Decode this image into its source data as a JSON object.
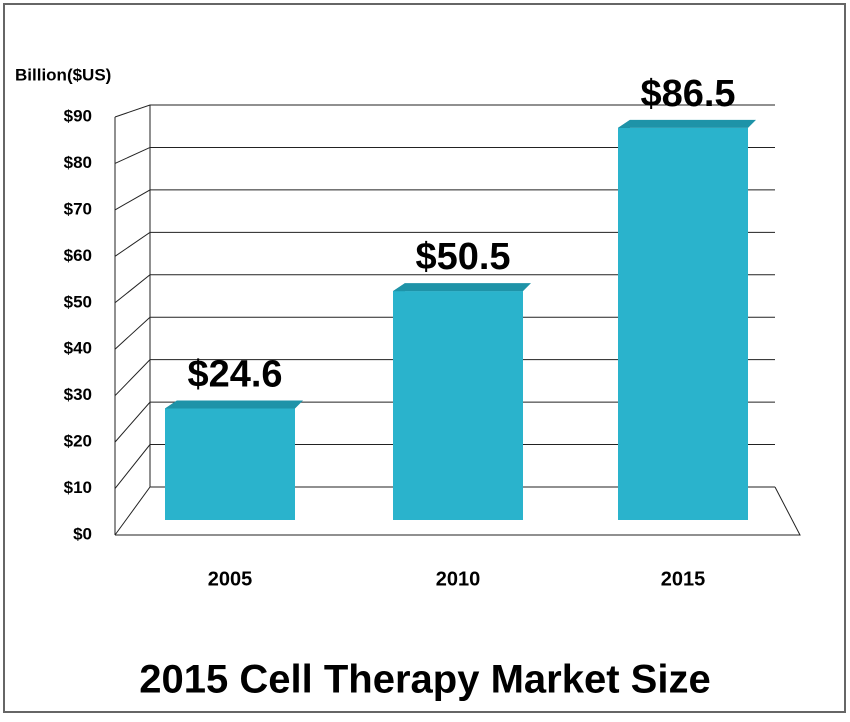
{
  "chart_data": {
    "type": "bar",
    "title": "2015 Cell Therapy Market Size",
    "y_label": "Billion($US)",
    "categories": [
      "2005",
      "2010",
      "2015"
    ],
    "values": [
      24.6,
      50.5,
      86.5
    ],
    "value_labels": [
      "$24.6",
      "$50.5",
      "$86.5"
    ],
    "color": "#2ab3cc",
    "ylim": [
      0,
      90
    ],
    "yticks": [
      {
        "value": 0,
        "label": "$0"
      },
      {
        "value": 10,
        "label": "$10"
      },
      {
        "value": 20,
        "label": "$20"
      },
      {
        "value": 30,
        "label": "$30"
      },
      {
        "value": 40,
        "label": "$40"
      },
      {
        "value": 50,
        "label": "$50"
      },
      {
        "value": 60,
        "label": "$60"
      },
      {
        "value": 70,
        "label": "$70"
      },
      {
        "value": 80,
        "label": "$80"
      },
      {
        "value": 90,
        "label": "$90"
      }
    ],
    "grid": true
  }
}
